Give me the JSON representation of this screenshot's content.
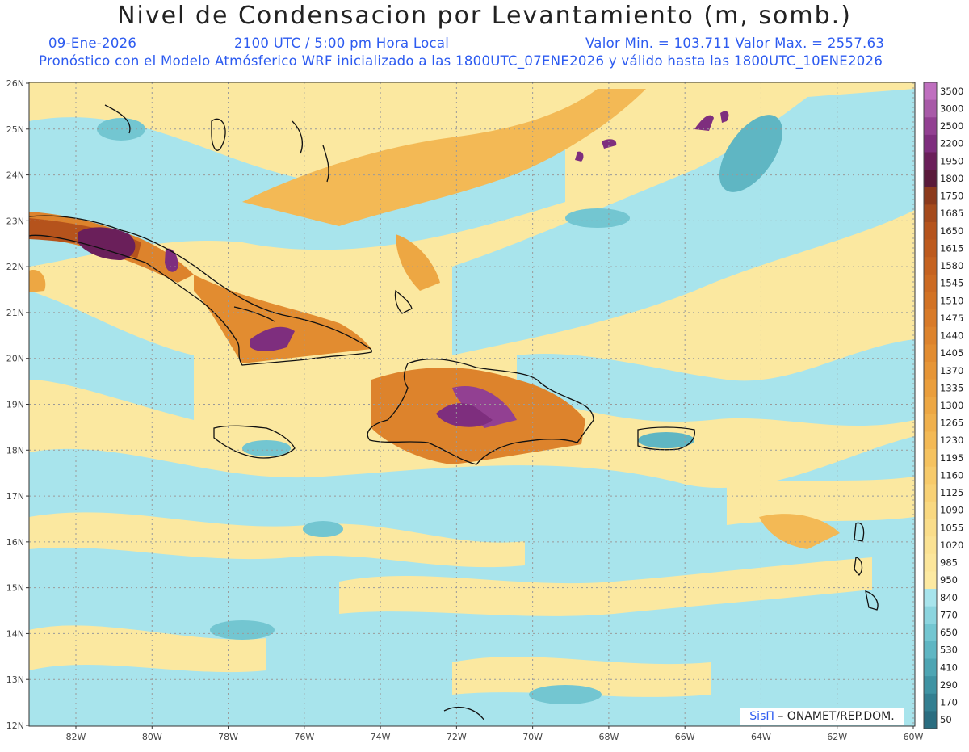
{
  "title": "Nivel de Condensacion por Levantamiento (m, somb.)",
  "subtitle": {
    "date": "09-Ene-2026",
    "time": "2100 UTC / 5:00 pm Hora Local",
    "minmax": "Valor Min. = 103.711   Valor Max. = 2557.63",
    "model": "Pronóstico con el Modelo Atmósferico WRF inicializado a las 1800UTC_07ENE2026 y válido hasta las  1800UTC_10ENE2026"
  },
  "map": {
    "lat_labels": [
      "26N",
      "25N",
      "24N",
      "23N",
      "22N",
      "21N",
      "20N",
      "19N",
      "18N",
      "17N",
      "16N",
      "15N",
      "14N",
      "13N",
      "12N"
    ],
    "lon_labels": [
      "82W",
      "80W",
      "78W",
      "76W",
      "74W",
      "72W",
      "70W",
      "68W",
      "66W",
      "64W",
      "62W",
      "60W"
    ]
  },
  "colorbar": {
    "levels": [
      "3500",
      "3000",
      "2500",
      "2200",
      "1950",
      "1800",
      "1750",
      "1685",
      "1650",
      "1615",
      "1580",
      "1545",
      "1510",
      "1475",
      "1440",
      "1405",
      "1370",
      "1335",
      "1300",
      "1265",
      "1230",
      "1195",
      "1160",
      "1125",
      "1090",
      "1055",
      "1020",
      "985",
      "950",
      "840",
      "770",
      "650",
      "530",
      "410",
      "290",
      "170",
      "50"
    ],
    "colors": [
      "#bf6fbf",
      "#a85aa8",
      "#924092",
      "#7e2e7e",
      "#6a1f5a",
      "#5a1a3a",
      "#8c3a1c",
      "#a54a1c",
      "#b5531c",
      "#bd5a1e",
      "#c56220",
      "#cc6a22",
      "#d27224",
      "#d87a28",
      "#dd832c",
      "#e28c30",
      "#e69536",
      "#ea9e3c",
      "#eda743",
      "#f0b04c",
      "#f3b955",
      "#f5c25f",
      "#f7ca6a",
      "#f8d175",
      "#f9d880",
      "#fadd8a",
      "#fbe293",
      "#fce69b",
      "#fdeaa2",
      "#a8e4ec",
      "#8cd5df",
      "#73c6d1",
      "#5fb6c3",
      "#4ea5b3",
      "#3f93a3",
      "#337f91",
      "#2a6d80"
    ]
  },
  "credit": {
    "brand": "SisΠ",
    "org": "– ONAMET/REP.DOM."
  }
}
